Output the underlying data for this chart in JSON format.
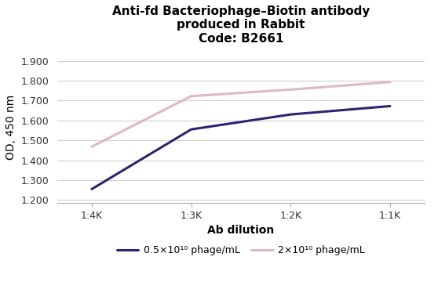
{
  "title_line1": "Anti-fd Bacteriophage–Biotin antibody",
  "title_line2": "produced in Rabbit",
  "title_line3": "Code: B2661",
  "xlabel": "Ab dilution",
  "ylabel": "OD, 450 nm",
  "x_positions": [
    0,
    1,
    2,
    3
  ],
  "x_labels": [
    "1:4K",
    "1:3K",
    "1:2K",
    "1:1K"
  ],
  "series1_label": "0.5×10¹⁰ phage/mL",
  "series1_color": "#2d2472",
  "series1_values": [
    1.255,
    1.555,
    1.63,
    1.672
  ],
  "series2_label": "2×10¹⁰ phage/mL",
  "series2_color": "#deb8c8",
  "series2_values": [
    1.468,
    1.722,
    1.755,
    1.793
  ],
  "ylim": [
    1.185,
    1.95
  ],
  "yticks": [
    1.2,
    1.3,
    1.4,
    1.5,
    1.6,
    1.7,
    1.8,
    1.9
  ],
  "background_color": "#ffffff",
  "grid_color": "#d0d0d0",
  "title_fontsize": 11,
  "label_fontsize": 10,
  "tick_fontsize": 9,
  "legend_fontsize": 9,
  "line_width": 2.2
}
